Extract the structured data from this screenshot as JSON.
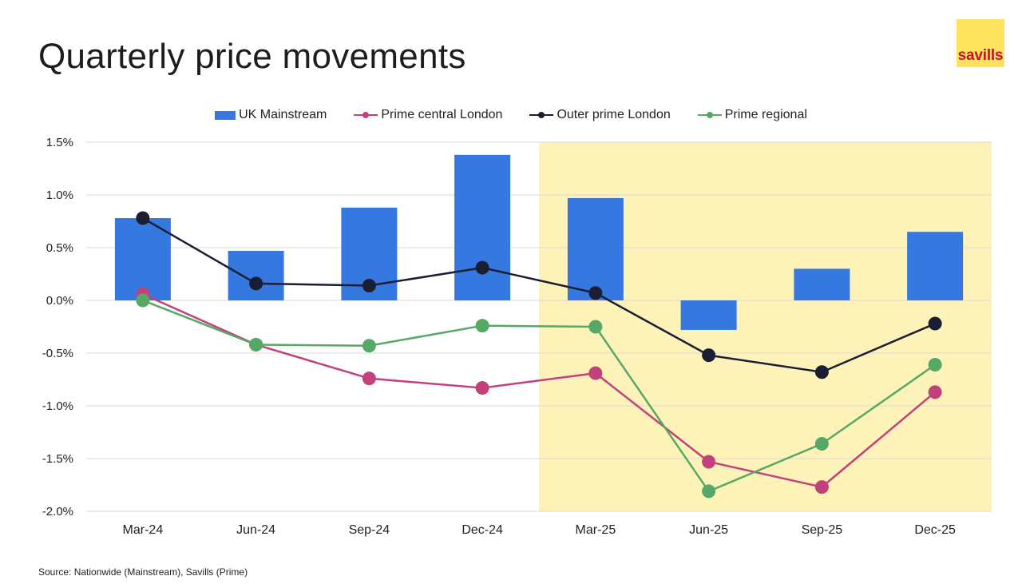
{
  "title": "Quarterly price movements",
  "logo_text": "savills",
  "source": "Source: Nationwide (Mainstream), Savills (Prime)",
  "colors": {
    "bar": "#3579e0",
    "pcl": "#c2417d",
    "opl": "#1b1e33",
    "regional": "#56a866",
    "highlight": "#fdf3b9",
    "logo_bg": "#fde35b",
    "logo_text": "#c8102e"
  },
  "chart_data": {
    "type": "bar",
    "title": "Quarterly price movements",
    "categories": [
      "Mar-24",
      "Jun-24",
      "Sep-24",
      "Dec-24",
      "Mar-25",
      "Jun-25",
      "Sep-25",
      "Dec-25"
    ],
    "ylim": [
      -2.0,
      1.5
    ],
    "yticks": [
      1.5,
      1.0,
      0.5,
      0.0,
      -0.5,
      -1.0,
      -1.5,
      -2.0
    ],
    "ytick_labels": [
      "1.5%",
      "1.0%",
      "0.5%",
      "0.0%",
      "-0.5%",
      "-1.0%",
      "-1.5%",
      "-2.0%"
    ],
    "highlight_from_category": "Mar-25",
    "legend_position": "top-center",
    "series": [
      {
        "name": "UK Mainstream",
        "kind": "bar",
        "color_key": "bar",
        "values": [
          0.78,
          0.47,
          0.88,
          1.38,
          0.97,
          -0.28,
          0.3,
          0.65
        ]
      },
      {
        "name": "Prime central London",
        "kind": "line",
        "color_key": "pcl",
        "values": [
          0.06,
          -0.42,
          -0.74,
          -0.83,
          -0.69,
          -1.53,
          -1.77,
          -0.87
        ]
      },
      {
        "name": "Outer prime London",
        "kind": "line",
        "color_key": "opl",
        "values": [
          0.78,
          0.16,
          0.14,
          0.31,
          0.07,
          -0.52,
          -0.68,
          -0.22
        ]
      },
      {
        "name": "Prime regional",
        "kind": "line",
        "color_key": "regional",
        "values": [
          0.0,
          -0.42,
          -0.43,
          -0.24,
          -0.25,
          -1.81,
          -1.36,
          -0.61
        ]
      }
    ]
  }
}
